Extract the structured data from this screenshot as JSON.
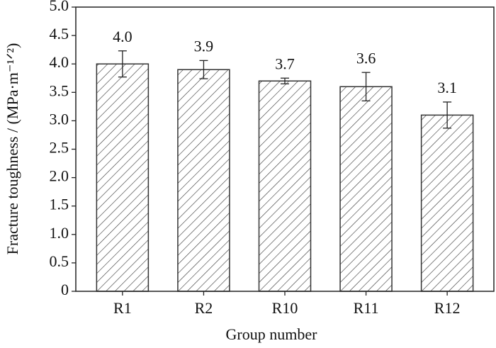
{
  "chart_data": {
    "type": "bar",
    "x_label": "Group number",
    "y_label": "Fracture toughness / (MPa·m⁻¹ᐟ²)",
    "categories": [
      "R1",
      "R2",
      "R10",
      "R11",
      "R12"
    ],
    "values": [
      4.0,
      3.9,
      3.7,
      3.6,
      3.1
    ],
    "value_labels": [
      "4.0",
      "3.9",
      "3.7",
      "3.6",
      "3.1"
    ],
    "errors": [
      0.23,
      0.16,
      0.05,
      0.25,
      0.23
    ],
    "color": "#333333",
    "hatch": "diagonal",
    "ylim": [
      0,
      5
    ],
    "yticks": [
      0,
      0.5,
      {
        "value": 1,
        "label": "1.0"
      },
      1.5,
      {
        "value": 2,
        "label": "2.0"
      },
      2.5,
      {
        "value": 3,
        "label": "3.0"
      },
      3.5,
      {
        "value": 4,
        "label": "4.0"
      },
      4.5,
      {
        "value": 5,
        "label": "5.0"
      }
    ]
  }
}
